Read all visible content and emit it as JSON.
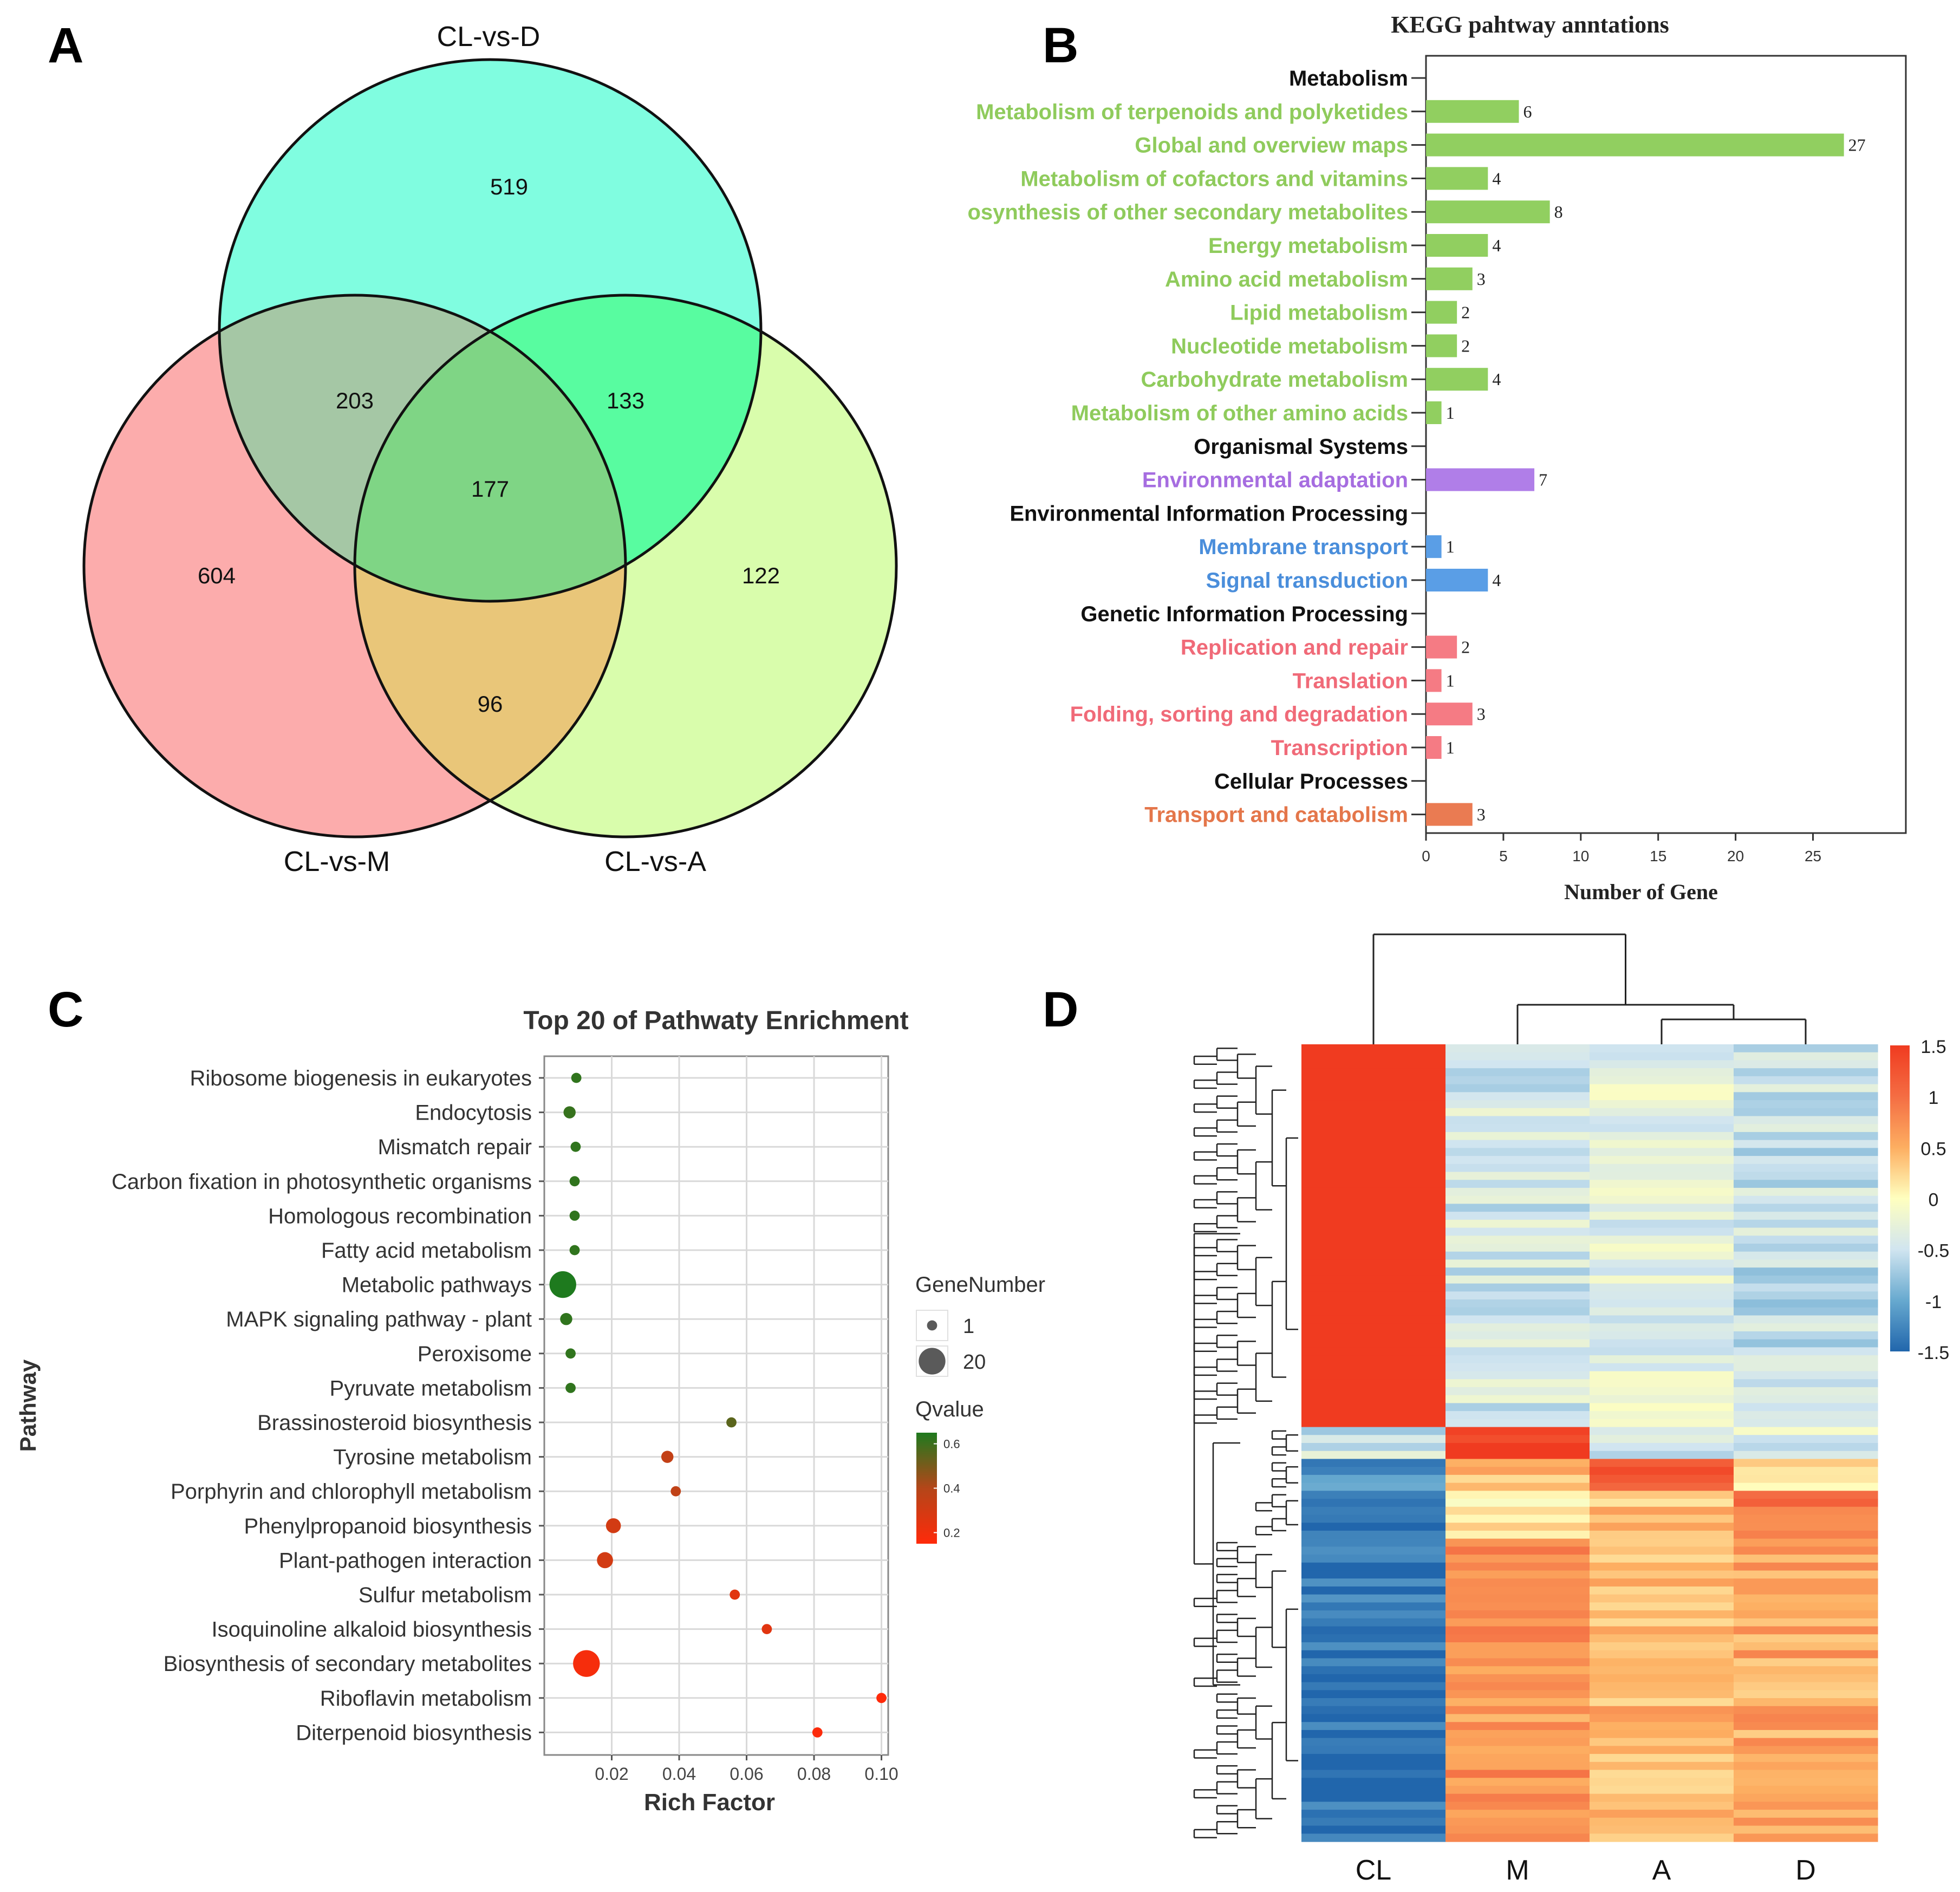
{
  "panel_letters": {
    "a": "A",
    "b": "B",
    "c": "C",
    "d": "D"
  },
  "chart_data": [
    {
      "type": "venn",
      "sets": [
        {
          "name": "CL-vs-D",
          "color": "#80fde0"
        },
        {
          "name": "CL-vs-M",
          "color": "#fcacac"
        },
        {
          "name": "CL-vs-A",
          "color": "#d9fdac"
        }
      ],
      "regions": [
        {
          "sets": [
            "CL-vs-D"
          ],
          "value": 519
        },
        {
          "sets": [
            "CL-vs-M"
          ],
          "value": 604
        },
        {
          "sets": [
            "CL-vs-A"
          ],
          "value": 122
        },
        {
          "sets": [
            "CL-vs-D",
            "CL-vs-M"
          ],
          "value": 203
        },
        {
          "sets": [
            "CL-vs-D",
            "CL-vs-A"
          ],
          "value": 133
        },
        {
          "sets": [
            "CL-vs-M",
            "CL-vs-A"
          ],
          "value": 96
        },
        {
          "sets": [
            "CL-vs-D",
            "CL-vs-M",
            "CL-vs-A"
          ],
          "value": 177
        }
      ],
      "region_colors": {
        "DM": "#a5c7a5",
        "DA": "#58fca0",
        "MA": "#e9c679",
        "DMA": "#7fd585"
      }
    },
    {
      "type": "bar",
      "orientation": "horizontal",
      "title": "KEGG pahtway anntations",
      "xlabel": "Number of Gene",
      "xlim": [
        0,
        31
      ],
      "xticks": [
        0,
        5,
        10,
        15,
        20,
        25
      ],
      "group_colors": {
        "Metabolism": "#91cf60",
        "Organismal Systems": "#b07ee8",
        "Environmental Information Processing": "#5a9ee6",
        "Genetic Information Processing": "#f57b84",
        "Cellular Processes": "#ea7b52"
      },
      "label_colors": {
        "Metabolism": "#8fcb5c",
        "Organismal Systems": "#a66de0",
        "Environmental Information Processing": "#4a8edb",
        "Genetic Information Processing": "#f06a78",
        "Cellular Processes": "#e4764a"
      },
      "rows": [
        {
          "label": "Metabolism",
          "header": true
        },
        {
          "label": "Metabolism of terpenoids and polyketides",
          "group": "Metabolism",
          "value": 6
        },
        {
          "label": "Global and overview maps",
          "group": "Metabolism",
          "value": 27
        },
        {
          "label": "Metabolism of cofactors and vitamins",
          "group": "Metabolism",
          "value": 4
        },
        {
          "label": "osynthesis of other secondary metabolites",
          "group": "Metabolism",
          "value": 8
        },
        {
          "label": "Energy metabolism",
          "group": "Metabolism",
          "value": 4
        },
        {
          "label": "Amino acid metabolism",
          "group": "Metabolism",
          "value": 3
        },
        {
          "label": "Lipid metabolism",
          "group": "Metabolism",
          "value": 2
        },
        {
          "label": "Nucleotide metabolism",
          "group": "Metabolism",
          "value": 2
        },
        {
          "label": "Carbohydrate metabolism",
          "group": "Metabolism",
          "value": 4
        },
        {
          "label": "Metabolism of other amino acids",
          "group": "Metabolism",
          "value": 1
        },
        {
          "label": "Organismal Systems",
          "header": true
        },
        {
          "label": "Environmental adaptation",
          "group": "Organismal Systems",
          "value": 7
        },
        {
          "label": "Environmental Information Processing",
          "header": true
        },
        {
          "label": "Membrane transport",
          "group": "Environmental Information Processing",
          "value": 1
        },
        {
          "label": "Signal transduction",
          "group": "Environmental Information Processing",
          "value": 4
        },
        {
          "label": "Genetic Information Processing",
          "header": true
        },
        {
          "label": "Replication and repair",
          "group": "Genetic Information Processing",
          "value": 2
        },
        {
          "label": "Translation",
          "group": "Genetic Information Processing",
          "value": 1
        },
        {
          "label": "Folding, sorting and degradation",
          "group": "Genetic Information Processing",
          "value": 3
        },
        {
          "label": "Transcription",
          "group": "Genetic Information Processing",
          "value": 1
        },
        {
          "label": "Cellular Processes",
          "header": true
        },
        {
          "label": "Transport and catabolism",
          "group": "Cellular Processes",
          "value": 3
        }
      ]
    },
    {
      "type": "scatter",
      "title": "Top 20 of Pathwaty Enrichment",
      "xlabel": "Rich Factor",
      "ylabel": "Pathway",
      "xlim": [
        0,
        0.102
      ],
      "xticks": [
        0.02,
        0.04,
        0.06,
        0.08,
        0.1
      ],
      "xtick_labels": [
        "0.02",
        "0.04",
        "0.06",
        "0.08",
        "0.10"
      ],
      "size_legend": {
        "title": "GeneNumber",
        "values": [
          1,
          20
        ],
        "labels": [
          "1",
          "20"
        ]
      },
      "color_legend": {
        "title": "Qvalue",
        "range": [
          0.15,
          0.65
        ],
        "ticks": [
          0.6,
          0.4,
          0.2
        ],
        "labels": [
          "0.6",
          "0.4",
          "0.2"
        ],
        "low_color": "#ff2a0a",
        "high_color": "#1e7a1e"
      },
      "points": [
        {
          "pathway": "Ribosome biogenesis in eukaryotes",
          "rich_factor": 0.0095,
          "gene_number": 1,
          "qvalue": 0.62
        },
        {
          "pathway": "Endocytosis",
          "rich_factor": 0.0075,
          "gene_number": 2,
          "qvalue": 0.61
        },
        {
          "pathway": "Mismatch repair",
          "rich_factor": 0.0093,
          "gene_number": 1,
          "qvalue": 0.62
        },
        {
          "pathway": "Carbon fixation in photosynthetic organisms",
          "rich_factor": 0.009,
          "gene_number": 1,
          "qvalue": 0.62
        },
        {
          "pathway": "Homologous recombination",
          "rich_factor": 0.009,
          "gene_number": 1,
          "qvalue": 0.62
        },
        {
          "pathway": "Fatty acid metabolism",
          "rich_factor": 0.009,
          "gene_number": 1,
          "qvalue": 0.62
        },
        {
          "pathway": "Metabolic pathways",
          "rich_factor": 0.0055,
          "gene_number": 20,
          "qvalue": 0.65
        },
        {
          "pathway": "MAPK signaling pathway - plant",
          "rich_factor": 0.0065,
          "gene_number": 2,
          "qvalue": 0.62
        },
        {
          "pathway": "Peroxisome",
          "rich_factor": 0.0078,
          "gene_number": 1,
          "qvalue": 0.62
        },
        {
          "pathway": "Pyruvate metabolism",
          "rich_factor": 0.0078,
          "gene_number": 1,
          "qvalue": 0.62
        },
        {
          "pathway": "Brassinosteroid biosynthesis",
          "rich_factor": 0.0555,
          "gene_number": 1,
          "qvalue": 0.55
        },
        {
          "pathway": "Tyrosine metabolism",
          "rich_factor": 0.0365,
          "gene_number": 2,
          "qvalue": 0.35
        },
        {
          "pathway": "Porphyrin and chlorophyll metabolism",
          "rich_factor": 0.039,
          "gene_number": 1,
          "qvalue": 0.36
        },
        {
          "pathway": "Phenylpropanoid biosynthesis",
          "rich_factor": 0.0205,
          "gene_number": 4,
          "qvalue": 0.3
        },
        {
          "pathway": "Plant-pathogen interaction",
          "rich_factor": 0.018,
          "gene_number": 5,
          "qvalue": 0.3
        },
        {
          "pathway": "Sulfur metabolism",
          "rich_factor": 0.0565,
          "gene_number": 1,
          "qvalue": 0.25
        },
        {
          "pathway": "Isoquinoline alkaloid biosynthesis",
          "rich_factor": 0.066,
          "gene_number": 1,
          "qvalue": 0.25
        },
        {
          "pathway": "Biosynthesis of secondary metabolites",
          "rich_factor": 0.0125,
          "gene_number": 20,
          "qvalue": 0.18
        },
        {
          "pathway": "Riboflavin metabolism",
          "rich_factor": 0.1,
          "gene_number": 1,
          "qvalue": 0.15
        },
        {
          "pathway": "Diterpenoid biosynthesis",
          "rich_factor": 0.081,
          "gene_number": 1,
          "qvalue": 0.16
        }
      ]
    },
    {
      "type": "heatmap",
      "columns": [
        "CL",
        "M",
        "A",
        "D"
      ],
      "scale": {
        "min": -1.5,
        "max": 1.5,
        "ticks": [
          1.5,
          1,
          0.5,
          0,
          -0.5,
          -1,
          -1.5
        ],
        "tick_labels": [
          "1.5",
          "1",
          "0.5",
          "0",
          "-0.5",
          "-1",
          "-1.5"
        ],
        "colors": [
          "#2166ac",
          "#67a9cf",
          "#d1e5f0",
          "#ffffbf",
          "#fdae61",
          "#f46d43",
          "#f03b20"
        ]
      },
      "row_clusters": [
        {
          "name": "CL-high",
          "rows": 48,
          "profile": [
            1.5,
            -0.45,
            -0.3,
            -0.55
          ]
        },
        {
          "name": "M-high",
          "rows": 4,
          "profile": [
            -0.5,
            1.5,
            -0.4,
            -0.35
          ]
        },
        {
          "name": "A-high",
          "rows": 4,
          "profile": [
            -1.2,
            0.4,
            1.3,
            0.2
          ]
        },
        {
          "name": "D-high",
          "rows": 6,
          "profile": [
            -1.3,
            0.2,
            0.4,
            1.0
          ]
        },
        {
          "name": "M-A-D-high",
          "rows": 38,
          "profile": [
            -1.4,
            0.7,
            0.45,
            0.55
          ]
        }
      ]
    }
  ]
}
